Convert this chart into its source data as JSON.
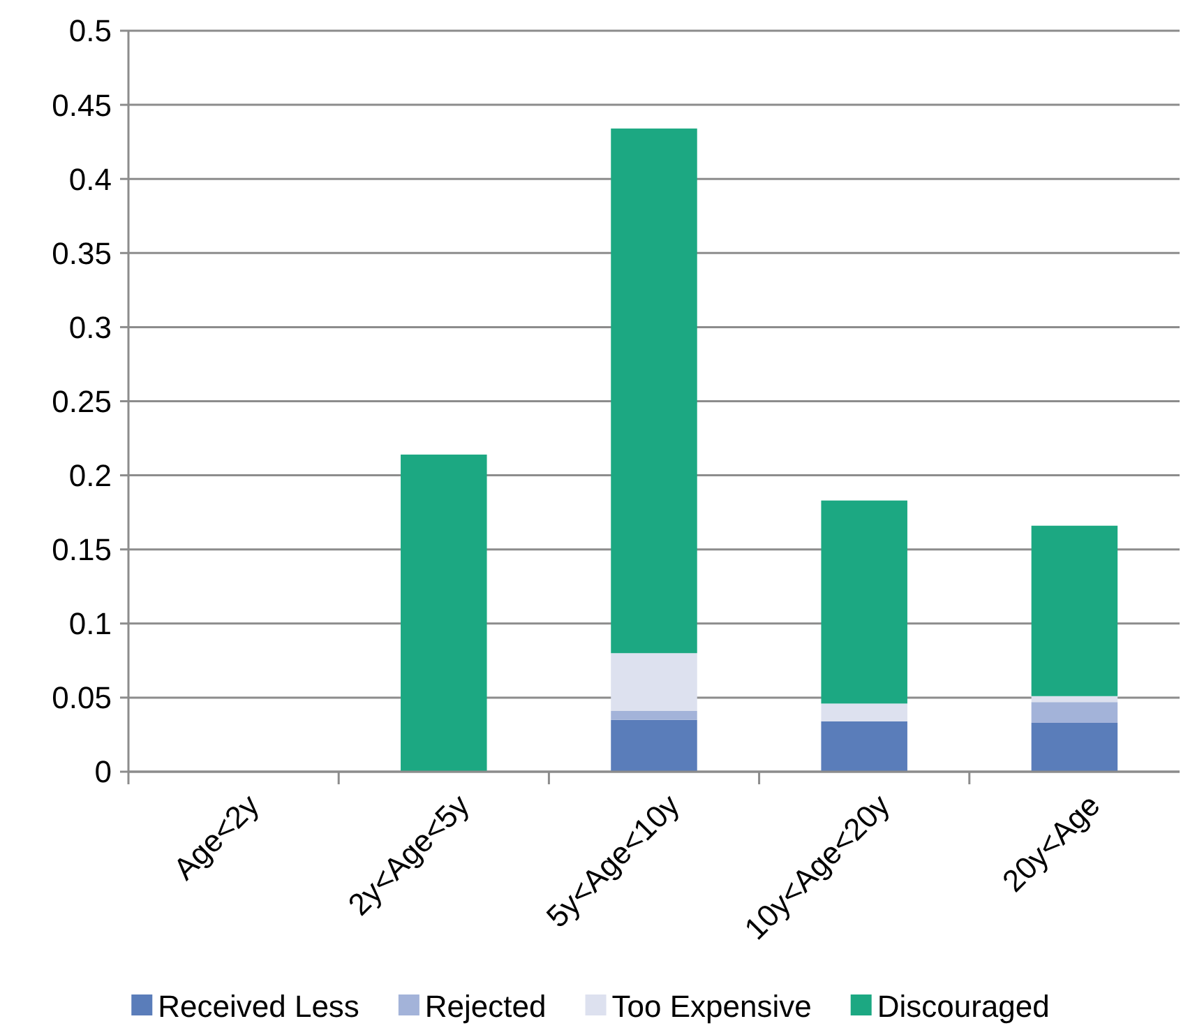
{
  "chart_data": {
    "type": "bar",
    "stacked": true,
    "categories": [
      "Age<2y",
      "2y<Age<5y",
      "5y<Age<10y",
      "10y<Age<20y",
      "20y<Age"
    ],
    "series": [
      {
        "name": "Received Less",
        "color": "#5a7dba",
        "values": [
          0,
          0,
          0.035,
          0.034,
          0.033
        ]
      },
      {
        "name": "Rejected",
        "color": "#a3b3d9",
        "values": [
          0,
          0,
          0.006,
          0,
          0.014
        ]
      },
      {
        "name": "Too Expensive",
        "color": "#dde1ef",
        "values": [
          0,
          0,
          0.039,
          0.012,
          0.004
        ]
      },
      {
        "name": "Discouraged",
        "color": "#1ca882",
        "values": [
          0,
          0.214,
          0.354,
          0.137,
          0.115
        ]
      }
    ],
    "ylim": [
      0,
      0.5
    ],
    "yticks": [
      0,
      0.05,
      0.1,
      0.15,
      0.2,
      0.25,
      0.3,
      0.35,
      0.4,
      0.45,
      0.5
    ],
    "grid": "y",
    "legend": "bottom"
  }
}
